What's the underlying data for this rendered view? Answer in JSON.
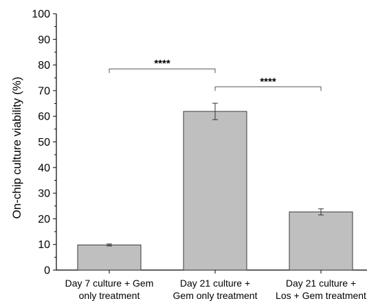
{
  "chart_data": {
    "type": "bar",
    "ylabel": "On-chip culture viability (%)",
    "xlabel": "",
    "title": "",
    "ylim": [
      0,
      100
    ],
    "yticks": [
      0,
      10,
      20,
      30,
      40,
      50,
      60,
      70,
      80,
      90,
      100
    ],
    "grid": false,
    "legend": "none",
    "bar_color": "#bfbfbf",
    "categories": [
      [
        "Day 7 culture + Gem",
        "only treatment"
      ],
      [
        "Day 21 culture +",
        "Gem only treatment"
      ],
      [
        "Day 21 culture +",
        "Los + Gem treatment"
      ]
    ],
    "values": [
      9.8,
      61.9,
      22.7
    ],
    "errors": [
      0.4,
      3.2,
      1.2
    ],
    "significance": [
      {
        "from": 0,
        "to": 1,
        "label": "****",
        "y": 78.5
      },
      {
        "from": 1,
        "to": 2,
        "label": "****",
        "y": 71.5
      }
    ]
  }
}
